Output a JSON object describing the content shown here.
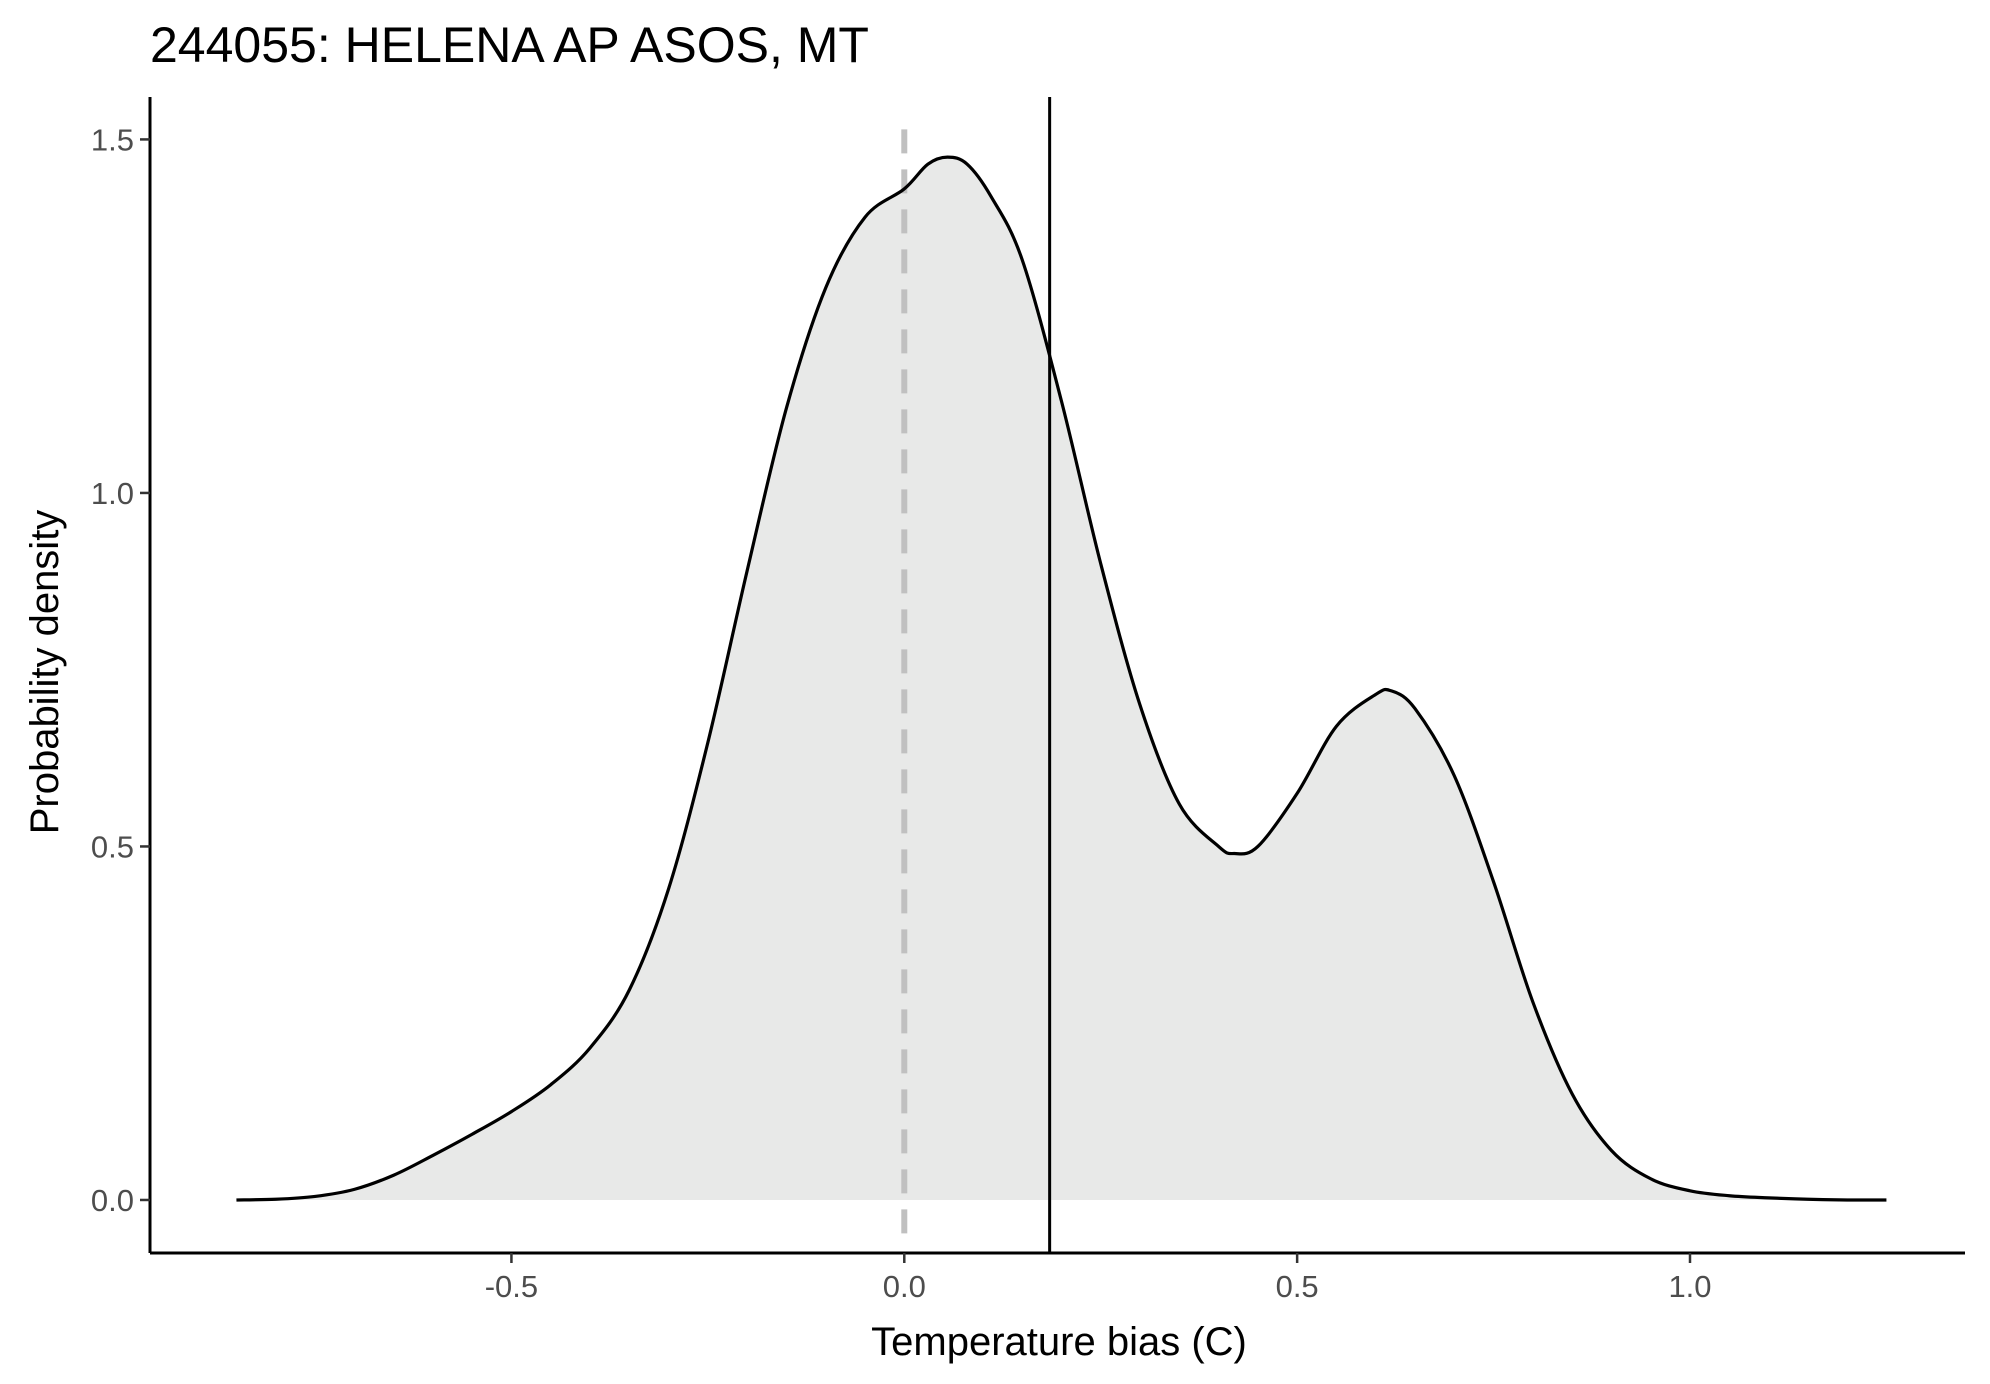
{
  "chart_data": {
    "type": "area",
    "title": "244055: HELENA AP ASOS, MT",
    "xlabel": "Temperature bias (C)",
    "ylabel": "Probability density",
    "xlim": [
      -0.96,
      1.35
    ],
    "ylim": [
      -0.075,
      1.56
    ],
    "xticks": [
      -0.5,
      0.0,
      0.5,
      1.0
    ],
    "xtick_labels": [
      "-0.5",
      "0.0",
      "0.5",
      "1.0"
    ],
    "yticks": [
      0.0,
      0.5,
      1.0,
      1.5
    ],
    "ytick_labels": [
      "0.0",
      "0.5",
      "1.0",
      "1.5"
    ],
    "grid": false,
    "legend": "none",
    "series": [
      {
        "x": [
          -0.85,
          -0.8,
          -0.75,
          -0.7,
          -0.65,
          -0.6,
          -0.55,
          -0.5,
          -0.45,
          -0.4,
          -0.35,
          -0.3,
          -0.25,
          -0.2,
          -0.15,
          -0.1,
          -0.05,
          0.0,
          0.03,
          0.055,
          0.08,
          0.11,
          0.15,
          0.2,
          0.25,
          0.3,
          0.35,
          0.4,
          0.42,
          0.45,
          0.5,
          0.55,
          0.6,
          0.62,
          0.65,
          0.7,
          0.75,
          0.8,
          0.85,
          0.9,
          0.95,
          1.0,
          1.05,
          1.1,
          1.15,
          1.2,
          1.25
        ],
        "y": [
          0.0,
          0.001,
          0.005,
          0.015,
          0.035,
          0.063,
          0.093,
          0.125,
          0.163,
          0.215,
          0.297,
          0.44,
          0.647,
          0.89,
          1.12,
          1.29,
          1.39,
          1.43,
          1.465,
          1.475,
          1.465,
          1.42,
          1.33,
          1.13,
          0.9,
          0.7,
          0.56,
          0.5,
          0.49,
          0.5,
          0.575,
          0.67,
          0.715,
          0.72,
          0.695,
          0.6,
          0.45,
          0.28,
          0.15,
          0.07,
          0.03,
          0.013,
          0.006,
          0.003,
          0.001,
          0.0,
          0.0
        ],
        "fill": "#e8e9e8",
        "line_color": "#000000"
      }
    ],
    "reference_lines": [
      {
        "x": 0.0,
        "style": "dashed",
        "color": "#c0c0c0"
      },
      {
        "x": 0.185,
        "style": "solid",
        "color": "#000000"
      }
    ]
  }
}
